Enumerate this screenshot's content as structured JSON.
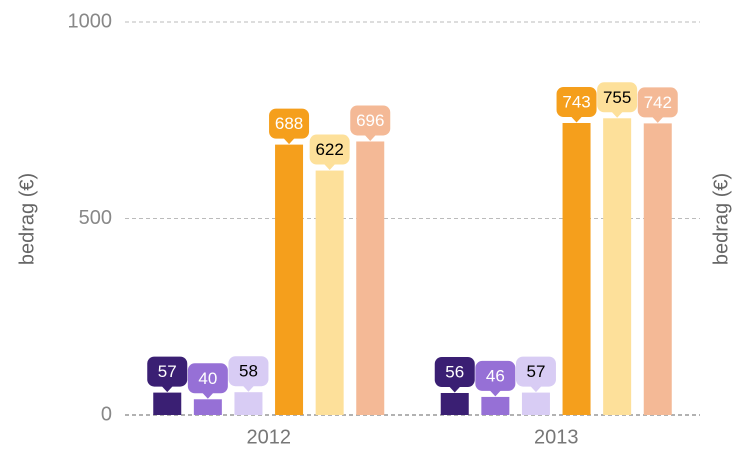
{
  "chart_data": {
    "type": "bar",
    "y_label": "bedrag (€)",
    "y2_label": "bedrag (€)",
    "categories": [
      "2012",
      "2013"
    ],
    "series": [
      {
        "color": "#3a1f73",
        "label_color": "#ffffff",
        "values": [
          57,
          56
        ]
      },
      {
        "color": "#9670d6",
        "label_color": "#ffffff",
        "values": [
          40,
          46
        ]
      },
      {
        "color": "#d8ccf4",
        "label_color": "#000000",
        "values": [
          58,
          57
        ]
      },
      {
        "color": "#f59f1c",
        "label_color": "#ffffff",
        "values": [
          688,
          743
        ]
      },
      {
        "color": "#fde09a",
        "label_color": "#000000",
        "values": [
          622,
          755
        ]
      },
      {
        "color": "#f4b996",
        "label_color": "#ffffff",
        "values": [
          696,
          742
        ]
      }
    ],
    "ylim": [
      0,
      1000
    ],
    "yticks": [
      0,
      500,
      1000
    ],
    "grid": true
  }
}
